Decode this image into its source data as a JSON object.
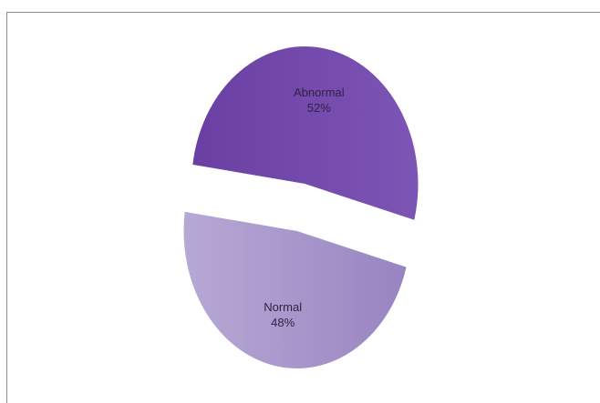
{
  "chart_data": {
    "type": "pie",
    "title": "",
    "legend": "none",
    "slices": [
      {
        "label": "Normal",
        "value": 48,
        "percent_label": "48%",
        "color": "#a796c9"
      },
      {
        "label": "Abnormal",
        "value": 52,
        "percent_label": "52%",
        "color": "#7048a8"
      }
    ]
  }
}
